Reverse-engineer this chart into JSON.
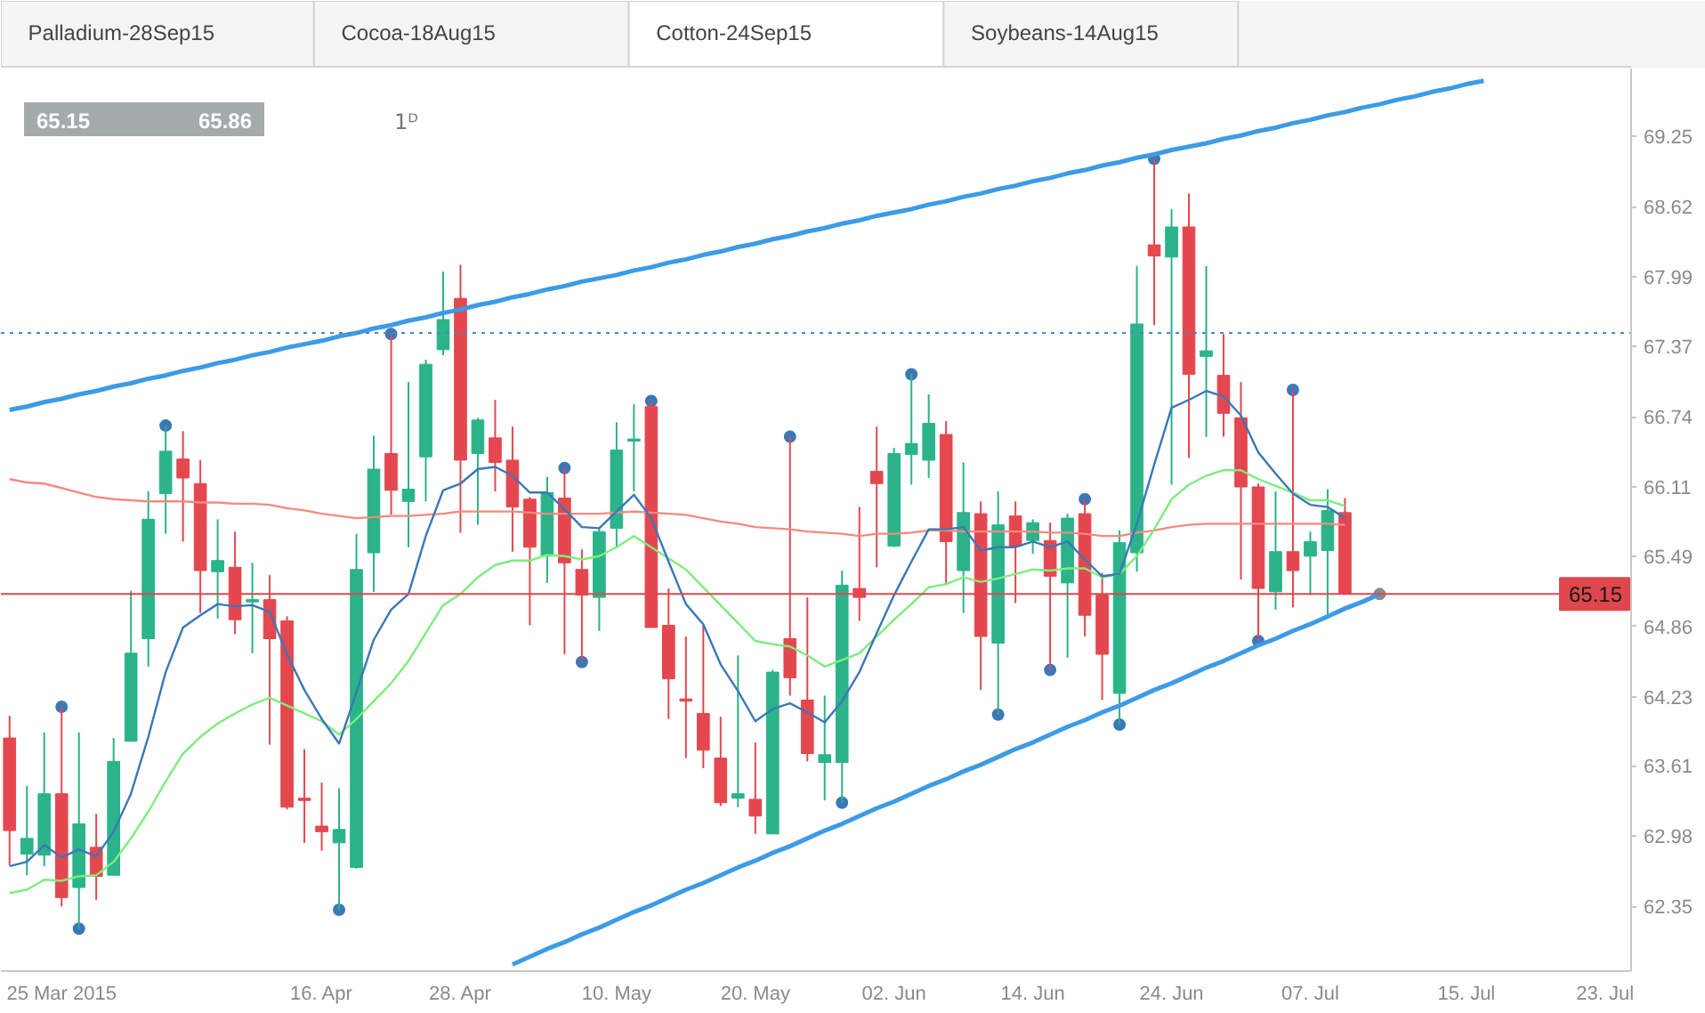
{
  "chart_data": {
    "type": "candlestick",
    "title": "Cotton-24Sep15",
    "annotations": [
      "Palladium-28Sep15",
      "Cocoa-18Aug15",
      "Soybeans-14Aug15",
      "65.15",
      "65.86",
      "1ᴰ"
    ],
    "categories": [
      null,
      null,
      null,
      "25 Mar 2015",
      null,
      null,
      null,
      null,
      null,
      null,
      null,
      null,
      null,
      null,
      null,
      null,
      null,
      null,
      "16. Apr",
      null,
      null,
      null,
      null,
      null,
      null,
      null,
      "28. Apr",
      null,
      null,
      null,
      null,
      null,
      null,
      null,
      null,
      "10. May",
      null,
      null,
      null,
      null,
      null,
      null,
      null,
      "20. May",
      null,
      null,
      null,
      null,
      null,
      null,
      null,
      "02. Jun",
      null,
      null,
      null,
      null,
      null,
      null,
      null,
      "14. Jun",
      null,
      null,
      null,
      null,
      null,
      null,
      null,
      "24. Jun",
      null,
      null,
      null,
      null,
      null,
      null,
      null,
      "07. Jul",
      null,
      null,
      null,
      null,
      null,
      null,
      null,
      null,
      "15. Jul",
      null,
      null,
      null,
      null,
      null,
      null,
      null,
      "23. Jul",
      null
    ],
    "ohlc": [
      [
        63.86,
        64.06,
        62.72,
        63.03
      ],
      [
        62.82,
        63.43,
        62.63,
        62.96
      ],
      [
        62.81,
        63.91,
        62.71,
        63.36
      ],
      [
        63.36,
        64.14,
        62.35,
        62.43
      ],
      [
        62.52,
        63.91,
        62.15,
        63.09
      ],
      [
        62.88,
        63.18,
        62.41,
        62.62
      ],
      [
        62.63,
        63.86,
        62.63,
        63.65
      ],
      [
        63.83,
        65.18,
        63.83,
        64.62
      ],
      [
        64.75,
        66.07,
        64.5,
        65.82
      ],
      [
        66.05,
        66.66,
        65.69,
        66.43
      ],
      [
        66.36,
        66.61,
        65.62,
        66.19
      ],
      [
        66.14,
        66.35,
        64.98,
        65.36
      ],
      [
        65.35,
        65.82,
        64.93,
        65.45
      ],
      [
        65.39,
        65.71,
        64.79,
        64.92
      ],
      [
        65.08,
        65.43,
        64.62,
        65.1
      ],
      [
        65.1,
        65.32,
        63.8,
        64.75
      ],
      [
        64.91,
        64.95,
        63.22,
        63.24
      ],
      [
        63.32,
        63.76,
        62.92,
        63.3
      ],
      [
        63.07,
        63.46,
        62.85,
        63.02
      ],
      [
        62.92,
        63.41,
        62.32,
        63.04
      ],
      [
        62.7,
        65.69,
        62.69,
        65.37
      ],
      [
        65.52,
        66.57,
        65.17,
        66.27
      ],
      [
        66.41,
        67.48,
        65.86,
        66.08
      ],
      [
        65.98,
        67.05,
        65.57,
        66.09
      ],
      [
        66.38,
        67.25,
        65.98,
        67.21
      ],
      [
        67.34,
        68.04,
        67.29,
        67.61
      ],
      [
        67.8,
        68.1,
        65.7,
        66.35
      ],
      [
        66.41,
        66.73,
        65.77,
        66.71
      ],
      [
        66.55,
        66.89,
        66.07,
        66.33
      ],
      [
        66.35,
        66.65,
        65.53,
        65.93
      ],
      [
        66.0,
        66.02,
        64.87,
        65.57
      ],
      [
        65.49,
        66.2,
        65.25,
        66.06
      ],
      [
        66.01,
        66.28,
        64.61,
        65.43
      ],
      [
        65.37,
        65.55,
        64.54,
        65.14
      ],
      [
        65.12,
        65.75,
        64.82,
        65.71
      ],
      [
        65.74,
        66.69,
        65.57,
        66.44
      ],
      [
        66.52,
        66.85,
        66.07,
        66.54
      ],
      [
        66.83,
        66.88,
        64.85,
        64.85
      ],
      [
        64.87,
        65.2,
        64.03,
        64.39
      ],
      [
        64.21,
        64.77,
        63.68,
        64.19
      ],
      [
        64.08,
        64.87,
        63.59,
        63.75
      ],
      [
        63.68,
        64.05,
        63.25,
        63.28
      ],
      [
        63.32,
        64.6,
        63.24,
        63.36
      ],
      [
        63.31,
        63.82,
        63.0,
        63.16
      ],
      [
        63.0,
        64.47,
        63.0,
        64.45
      ],
      [
        64.75,
        66.56,
        64.24,
        64.4
      ],
      [
        64.2,
        65.12,
        63.65,
        63.72
      ],
      [
        63.64,
        64.24,
        63.3,
        63.71
      ],
      [
        63.64,
        65.36,
        63.28,
        65.23
      ],
      [
        65.2,
        65.93,
        64.91,
        65.12
      ],
      [
        66.25,
        66.65,
        65.39,
        66.14
      ],
      [
        65.58,
        66.46,
        65.57,
        66.41
      ],
      [
        66.4,
        67.12,
        66.13,
        66.5
      ],
      [
        66.35,
        66.94,
        66.19,
        66.68
      ],
      [
        66.58,
        66.7,
        65.23,
        65.62
      ],
      [
        65.36,
        66.33,
        64.98,
        65.88
      ],
      [
        65.87,
        65.98,
        64.29,
        64.77
      ],
      [
        64.71,
        66.07,
        64.07,
        65.77
      ],
      [
        65.85,
        65.98,
        65.07,
        65.58
      ],
      [
        65.63,
        65.82,
        65.51,
        65.79
      ],
      [
        65.63,
        65.79,
        64.47,
        65.31
      ],
      [
        65.25,
        65.87,
        64.58,
        65.83
      ],
      [
        65.87,
        66.0,
        64.77,
        64.96
      ],
      [
        65.14,
        65.34,
        64.2,
        64.61
      ],
      [
        64.26,
        65.72,
        63.98,
        65.61
      ],
      [
        65.52,
        68.09,
        65.35,
        67.57
      ],
      [
        68.28,
        69.05,
        67.56,
        68.18
      ],
      [
        68.17,
        68.6,
        66.13,
        68.44
      ],
      [
        68.44,
        68.74,
        66.37,
        67.12
      ],
      [
        67.28,
        68.09,
        66.56,
        67.33
      ],
      [
        67.11,
        67.48,
        66.56,
        66.77
      ],
      [
        66.73,
        67.05,
        65.28,
        66.11
      ],
      [
        66.11,
        66.14,
        64.73,
        65.2
      ],
      [
        65.17,
        66.07,
        65.01,
        65.53
      ],
      [
        65.53,
        66.98,
        65.03,
        65.36
      ],
      [
        65.49,
        65.71,
        65.14,
        65.62
      ],
      [
        65.54,
        66.09,
        64.97,
        65.9
      ],
      [
        65.88,
        66.01,
        65.15,
        65.15
      ],
      null,
      null,
      null,
      null,
      null,
      null,
      null,
      null,
      null,
      null,
      null,
      null,
      null,
      null,
      null,
      null
    ],
    "colors": [
      "#e4474e",
      "#2bb38a",
      "#2bb38a",
      "#e4474e",
      "#2bb38a",
      "#e4474e",
      "#2bb38a",
      "#2bb38a",
      "#2bb38a",
      "#2bb38a",
      "#e4474e",
      "#e4474e",
      "#2bb38a",
      "#e4474e",
      "#2bb38a",
      "#e4474e",
      "#e4474e",
      "#e4474e",
      "#e4474e",
      "#2bb38a",
      "#2bb38a",
      "#2bb38a",
      "#e4474e",
      "#2bb38a",
      "#2bb38a",
      "#2bb38a",
      "#e4474e",
      "#2bb38a",
      "#e4474e",
      "#e4474e",
      "#e4474e",
      "#2bb38a",
      "#e4474e",
      "#e4474e",
      "#2bb38a",
      "#2bb38a",
      "#2bb38a",
      "#e4474e",
      "#e4474e",
      "#e4474e",
      "#e4474e",
      "#e4474e",
      "#2bb38a",
      "#e4474e",
      "#2bb38a",
      "#e4474e",
      "#e4474e",
      "#2bb38a",
      "#2bb38a",
      "#e4474e",
      "#e4474e",
      "#2bb38a",
      "#2bb38a",
      "#2bb38a",
      "#e4474e",
      "#2bb38a",
      "#e4474e",
      "#2bb38a",
      "#e4474e",
      "#2bb38a",
      "#e4474e",
      "#2bb38a",
      "#e4474e",
      "#e4474e",
      "#2bb38a",
      "#2bb38a",
      "#e4474e",
      "#2bb38a",
      "#e4474e",
      "#2bb38a",
      "#e4474e",
      "#e4474e",
      "#e4474e",
      "#2bb38a",
      "#e4474e",
      "#2bb38a",
      "#2bb38a",
      "#e4474e",
      null,
      null,
      null,
      null,
      null,
      null,
      null,
      null,
      null,
      null,
      null,
      null,
      null,
      null,
      null,
      null
    ],
    "ylim": [
      61.77,
      69.86
    ],
    "yticks": [
      62.35,
      62.98,
      63.61,
      64.23,
      64.86,
      65.49,
      66.11,
      66.74,
      67.37,
      67.99,
      68.62,
      69.25
    ],
    "series": [
      {
        "type": "line",
        "color": "#f58a80",
        "values": [
          66.18,
          66.15,
          66.14,
          66.1,
          66.06,
          66.02,
          66.0,
          65.99,
          65.98,
          65.98,
          65.98,
          65.97,
          65.97,
          65.96,
          65.96,
          65.95,
          65.92,
          65.9,
          65.87,
          65.85,
          65.83,
          65.84,
          65.85,
          65.85,
          65.86,
          65.87,
          65.89,
          65.89,
          65.89,
          65.89,
          65.88,
          65.87,
          65.87,
          65.87,
          65.87,
          65.88,
          65.89,
          65.88,
          65.87,
          65.86,
          65.83,
          65.8,
          65.78,
          65.75,
          65.74,
          65.73,
          65.71,
          65.7,
          65.69,
          65.67,
          65.69,
          65.69,
          65.7,
          65.72,
          65.72,
          65.71,
          65.71,
          65.71,
          65.71,
          65.71,
          65.7,
          65.7,
          65.69,
          65.67,
          65.67,
          65.7,
          65.72,
          65.75,
          65.77,
          65.78,
          65.78,
          65.78,
          65.78,
          65.78,
          65.78,
          65.78,
          65.78,
          65.77,
          null,
          null,
          null,
          null,
          null,
          null,
          null,
          null,
          null,
          null,
          null,
          null,
          null,
          null,
          null,
          null
        ]
      },
      {
        "type": "line",
        "color": "#7ded7d",
        "values": [
          62.47,
          62.5,
          62.59,
          62.58,
          62.62,
          62.63,
          62.75,
          62.96,
          63.2,
          63.47,
          63.72,
          63.87,
          63.99,
          64.08,
          64.16,
          64.22,
          64.15,
          64.08,
          64.01,
          63.89,
          64.03,
          64.19,
          64.35,
          64.55,
          64.8,
          65.05,
          65.15,
          65.3,
          65.41,
          65.45,
          65.45,
          65.5,
          65.49,
          65.46,
          65.49,
          65.57,
          65.67,
          65.57,
          65.47,
          65.37,
          65.21,
          65.05,
          64.89,
          64.73,
          64.7,
          64.68,
          64.6,
          64.5,
          64.56,
          64.62,
          64.77,
          64.92,
          65.06,
          65.21,
          65.24,
          65.3,
          65.26,
          65.29,
          65.33,
          65.37,
          65.36,
          65.38,
          65.38,
          65.3,
          65.33,
          65.49,
          65.73,
          66.0,
          66.13,
          66.21,
          66.26,
          66.26,
          66.18,
          66.12,
          66.06,
          65.99,
          65.99,
          65.94,
          null,
          null,
          null,
          null,
          null,
          null,
          null,
          null,
          null,
          null,
          null,
          null,
          null,
          null,
          null,
          null
        ]
      },
      {
        "type": "line",
        "color": "#3a78b8",
        "values": [
          62.71,
          62.75,
          62.9,
          62.79,
          62.86,
          62.8,
          63.02,
          63.36,
          63.87,
          64.45,
          64.85,
          64.96,
          65.06,
          65.04,
          65.05,
          64.99,
          64.61,
          64.29,
          64.03,
          63.81,
          64.27,
          64.74,
          65.01,
          65.15,
          65.67,
          66.08,
          66.14,
          66.27,
          66.29,
          66.21,
          66.06,
          66.06,
          65.91,
          65.75,
          65.74,
          65.89,
          66.04,
          65.83,
          65.44,
          65.06,
          64.88,
          64.52,
          64.28,
          64.01,
          64.12,
          64.17,
          64.09,
          64.0,
          64.19,
          64.45,
          64.8,
          65.14,
          65.44,
          65.73,
          65.73,
          65.75,
          65.54,
          65.57,
          65.57,
          65.62,
          65.57,
          65.62,
          65.46,
          65.31,
          65.33,
          65.78,
          66.31,
          66.82,
          66.89,
          66.97,
          66.92,
          66.75,
          66.42,
          66.23,
          66.05,
          65.95,
          65.93,
          65.83,
          null,
          null,
          null,
          null,
          null,
          null,
          null,
          null,
          null,
          null,
          null,
          null,
          null,
          null,
          null,
          null
        ]
      },
      {
        "type": "line",
        "color": "#3d9be6",
        "values": [
          66.8,
          66.83,
          66.87,
          66.9,
          66.94,
          66.97,
          67.01,
          67.04,
          67.08,
          67.11,
          67.15,
          67.18,
          67.22,
          67.25,
          67.29,
          67.32,
          67.36,
          67.39,
          67.42,
          67.46,
          67.49,
          67.53,
          67.56,
          67.6,
          67.63,
          67.67,
          67.7,
          67.74,
          67.77,
          67.81,
          67.84,
          67.88,
          67.91,
          67.95,
          67.98,
          68.01,
          68.05,
          68.08,
          68.12,
          68.15,
          68.19,
          68.22,
          68.26,
          68.29,
          68.33,
          68.36,
          68.4,
          68.43,
          68.47,
          68.5,
          68.54,
          68.57,
          68.6,
          68.64,
          68.67,
          68.71,
          68.74,
          68.78,
          68.81,
          68.85,
          68.88,
          68.92,
          68.95,
          68.99,
          69.02,
          69.06,
          69.09,
          69.13,
          69.16,
          69.19,
          69.23,
          69.26,
          69.3,
          69.33,
          69.37,
          69.4,
          69.44,
          69.47,
          69.51,
          69.54,
          69.58,
          69.61,
          69.65,
          69.68,
          69.72,
          69.75,
          null,
          null,
          null,
          null,
          null,
          null,
          null,
          null
        ]
      },
      {
        "type": "line",
        "color": "#3d9be6",
        "values": [
          null,
          null,
          null,
          null,
          null,
          null,
          null,
          null,
          null,
          null,
          null,
          null,
          null,
          null,
          null,
          null,
          null,
          null,
          null,
          null,
          null,
          null,
          null,
          null,
          null,
          null,
          null,
          null,
          null,
          61.83,
          61.9,
          61.97,
          62.03,
          62.1,
          62.16,
          62.23,
          62.3,
          62.36,
          62.43,
          62.5,
          62.56,
          62.63,
          62.7,
          62.76,
          62.83,
          62.89,
          62.96,
          63.03,
          63.09,
          63.16,
          63.23,
          63.29,
          63.36,
          63.43,
          63.49,
          63.56,
          63.62,
          63.69,
          63.76,
          63.82,
          63.89,
          63.96,
          64.02,
          64.09,
          64.15,
          64.22,
          64.29,
          64.35,
          64.42,
          64.49,
          64.55,
          64.62,
          64.69,
          64.75,
          64.82,
          64.88,
          64.95,
          65.02,
          65.08,
          65.15,
          null,
          null,
          null,
          null,
          null,
          null,
          null,
          null,
          null,
          null,
          null,
          null,
          null,
          null
        ]
      },
      {
        "type": "scatter",
        "color": "#3b78b8",
        "marker": "circle",
        "values": [
          null,
          null,
          null,
          64.14,
          62.15,
          null,
          null,
          null,
          null,
          66.66,
          null,
          null,
          null,
          null,
          null,
          null,
          null,
          null,
          null,
          62.32,
          null,
          null,
          67.48,
          null,
          null,
          null,
          null,
          null,
          null,
          null,
          null,
          null,
          66.28,
          64.54,
          null,
          null,
          null,
          66.88,
          null,
          null,
          null,
          null,
          null,
          null,
          null,
          66.56,
          null,
          null,
          63.28,
          null,
          null,
          null,
          67.12,
          null,
          null,
          null,
          null,
          64.07,
          null,
          null,
          64.47,
          null,
          66.0,
          null,
          63.98,
          null,
          69.05,
          null,
          null,
          null,
          null,
          null,
          64.73,
          null,
          66.98,
          null,
          null,
          null,
          null,
          null,
          null,
          null,
          null,
          null,
          null,
          null,
          null,
          null,
          null,
          null,
          null,
          null,
          null,
          null
        ]
      },
      {
        "type": "scatter",
        "color": "#8c8c8c",
        "marker": "circle",
        "values": [
          null,
          null,
          null,
          null,
          null,
          null,
          null,
          null,
          null,
          null,
          null,
          null,
          null,
          null,
          null,
          null,
          null,
          null,
          null,
          null,
          null,
          null,
          null,
          null,
          null,
          null,
          null,
          null,
          null,
          null,
          null,
          null,
          null,
          null,
          null,
          null,
          null,
          null,
          null,
          null,
          null,
          null,
          null,
          null,
          null,
          null,
          null,
          null,
          null,
          null,
          null,
          null,
          null,
          null,
          null,
          null,
          null,
          null,
          null,
          null,
          null,
          null,
          null,
          null,
          null,
          null,
          null,
          null,
          null,
          null,
          null,
          null,
          null,
          null,
          null,
          null,
          null,
          null,
          null,
          65.15,
          null,
          null,
          null,
          null,
          null,
          null,
          null,
          null,
          null,
          null,
          null,
          null,
          null,
          null
        ]
      }
    ],
    "ref_lines": [
      {
        "axis": "y",
        "value": 67.49,
        "color": "#4a86c8",
        "line_style": "dotted"
      },
      {
        "axis": "y",
        "value": 65.15,
        "label": "65.15",
        "color": "#e0474d"
      }
    ]
  }
}
